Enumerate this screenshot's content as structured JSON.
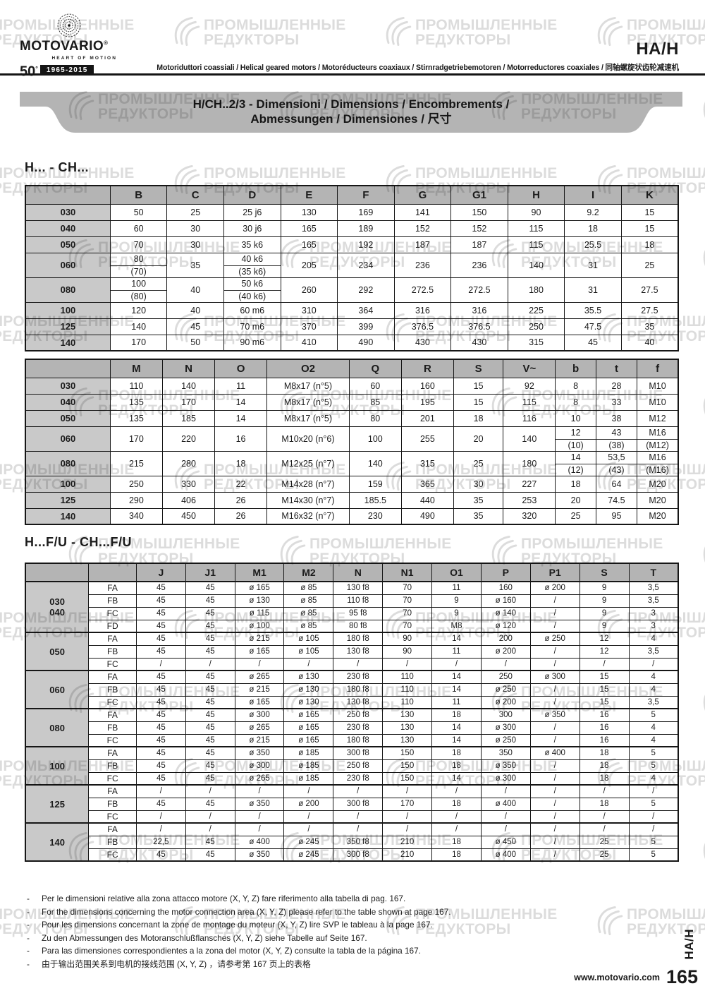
{
  "header": {
    "brand": "MOTOVARIO",
    "reg": "®",
    "tagline": "HEART OF MOTION",
    "anniversary_number": "50",
    "anniversary_degree": "°",
    "anniversary_years": "1965-2015",
    "product_code": "HA/H",
    "subtitle": "Motoriduttori coassiali / Helical geared motors / Motoréducteurs coaxiaux / Stirnradgetriebemotoren / Motorreductores coaxiales / 同轴螺旋状齿轮减速机"
  },
  "banner": {
    "line1": "H/CH..2/3 - Dimensioni / Dimensions / Encombrements /",
    "line2": "Abmessungen / Dimensiones / 尺寸"
  },
  "watermark": {
    "line1": "ПРОМЫШЛЕННЫЕ",
    "line2": "РЕДУКТОРЫ"
  },
  "sections": {
    "first": "H... - CH...",
    "second": "H...F/U - CH...F/U"
  },
  "tables": {
    "h_ch_main": {
      "headers": [
        "",
        "B",
        "C",
        "D",
        "E",
        "F",
        "G",
        "G1",
        "H",
        "I",
        "K"
      ],
      "rows": [
        [
          "030",
          "50",
          "25",
          "25 j6",
          "130",
          "169",
          "141",
          "150",
          "90",
          "9.2",
          "15"
        ],
        [
          "040",
          "60",
          "30",
          "30 j6",
          "165",
          "189",
          "152",
          "152",
          "115",
          "18",
          "15"
        ],
        [
          "050",
          "70",
          "30",
          "35 k6",
          "165",
          "192",
          "187",
          "187",
          "115",
          "25.5",
          "18"
        ],
        [
          "060",
          [
            "80",
            "(70)"
          ],
          "35",
          [
            "40 k6",
            "(35 k6)"
          ],
          "205",
          "234",
          "236",
          "236",
          "140",
          "31",
          "25"
        ],
        [
          "080",
          [
            "100",
            "(80)"
          ],
          "40",
          [
            "50 k6",
            "(40 k6)"
          ],
          "260",
          "292",
          "272.5",
          "272.5",
          "180",
          "31",
          "27.5"
        ],
        [
          "100",
          "120",
          "40",
          "60 m6",
          "310",
          "364",
          "316",
          "316",
          "225",
          "35.5",
          "27.5"
        ],
        [
          "125",
          "140",
          "45",
          "70 m6",
          "370",
          "399",
          "376.5",
          "376.5",
          "250",
          "47.5",
          "35"
        ],
        [
          "140",
          "170",
          "50",
          "90 m6",
          "410",
          "490",
          "430",
          "430",
          "315",
          "45",
          "40"
        ]
      ]
    },
    "h_ch_secondary": {
      "headers": [
        "",
        "M",
        "N",
        "O",
        "O2",
        "Q",
        "R",
        "S",
        "V~",
        "b",
        "t",
        "f"
      ],
      "rows": [
        [
          "030",
          "110",
          "140",
          "11",
          "M8x17 (n°5)",
          "60",
          "160",
          "15",
          "92",
          "8",
          "28",
          "M10"
        ],
        [
          "040",
          "135",
          "170",
          "14",
          "M8x17 (n°5)",
          "85",
          "195",
          "15",
          "115",
          "8",
          "33",
          "M10"
        ],
        [
          "050",
          "135",
          "185",
          "14",
          "M8x17 (n°5)",
          "80",
          "201",
          "18",
          "116",
          "10",
          "38",
          "M12"
        ],
        [
          "060",
          "170",
          "220",
          "16",
          "M10x20 (n°6)",
          "100",
          "255",
          "20",
          "140",
          [
            "12",
            "(10)"
          ],
          [
            "43",
            "(38)"
          ],
          [
            "M16",
            "(M12)"
          ]
        ],
        [
          "080",
          "215",
          "280",
          "18",
          "M12x25 (n°7)",
          "140",
          "315",
          "25",
          "180",
          [
            "14",
            "(12)"
          ],
          [
            "53,5",
            "(43)"
          ],
          [
            "M16",
            "(M16)"
          ]
        ],
        [
          "100",
          "250",
          "330",
          "22",
          "M14x28 (n°7)",
          "159",
          "365",
          "30",
          "227",
          "18",
          "64",
          "M20"
        ],
        [
          "125",
          "290",
          "406",
          "26",
          "M14x30 (n°7)",
          "185.5",
          "440",
          "35",
          "253",
          "20",
          "74.5",
          "M20"
        ],
        [
          "140",
          "340",
          "450",
          "26",
          "M16x32 (n°7)",
          "230",
          "490",
          "35",
          "320",
          "25",
          "95",
          "M20"
        ]
      ]
    },
    "h_fu": {
      "headers": [
        "",
        "",
        "J",
        "J1",
        "M1",
        "M2",
        "N",
        "N1",
        "O1",
        "P",
        "P1",
        "S",
        "T"
      ],
      "groups": [
        {
          "label": [
            "030",
            "040"
          ],
          "rows": [
            [
              "FA",
              "45",
              "45",
              "ø 165",
              "ø 85",
              "130 f8",
              "70",
              "11",
              "160",
              "ø 200",
              "9",
              "3,5"
            ],
            [
              "FB",
              "45",
              "45",
              "ø 130",
              "ø 85",
              "110 f8",
              "70",
              "9",
              "ø 160",
              "/",
              "9",
              "3,5"
            ],
            [
              "FC",
              "45",
              "45",
              "ø 115",
              "ø 85",
              "95 f8",
              "70",
              "9",
              "ø 140",
              "/",
              "9",
              "3"
            ],
            [
              "FD",
              "45",
              "45",
              "ø 100",
              "ø 85",
              "80 f8",
              "70",
              "M8",
              "ø 120",
              "/",
              "9",
              "3"
            ]
          ]
        },
        {
          "label": [
            "050"
          ],
          "rows": [
            [
              "FA",
              "45",
              "45",
              "ø 215",
              "ø 105",
              "180 f8",
              "90",
              "14",
              "200",
              "ø 250",
              "12",
              "4"
            ],
            [
              "FB",
              "45",
              "45",
              "ø 165",
              "ø 105",
              "130 f8",
              "90",
              "11",
              "ø 200",
              "/",
              "12",
              "3,5"
            ],
            [
              "FC",
              "/",
              "/",
              "/",
              "/",
              "/",
              "/",
              "/",
              "/",
              "/",
              "/",
              "/"
            ]
          ]
        },
        {
          "label": [
            "060"
          ],
          "rows": [
            [
              "FA",
              "45",
              "45",
              "ø 265",
              "ø 130",
              "230 f8",
              "110",
              "14",
              "250",
              "ø 300",
              "15",
              "4"
            ],
            [
              "FB",
              "45",
              "45",
              "ø 215",
              "ø 130",
              "180 f8",
              "110",
              "14",
              "ø 250",
              "/",
              "15",
              "4"
            ],
            [
              "FC",
              "45",
              "45",
              "ø 165",
              "ø 130",
              "130 f8",
              "110",
              "11",
              "ø 200",
              "/",
              "15",
              "3,5"
            ]
          ]
        },
        {
          "label": [
            "080"
          ],
          "rows": [
            [
              "FA",
              "45",
              "45",
              "ø 300",
              "ø 165",
              "250 f8",
              "130",
              "18",
              "300",
              "ø 350",
              "16",
              "5"
            ],
            [
              "FB",
              "45",
              "45",
              "ø 265",
              "ø 165",
              "230 f8",
              "130",
              "14",
              "ø 300",
              "/",
              "16",
              "4"
            ],
            [
              "FC",
              "45",
              "45",
              "ø 215",
              "ø 165",
              "180 f8",
              "130",
              "14",
              "ø 250",
              "/",
              "16",
              "4"
            ]
          ]
        },
        {
          "label": [
            "100"
          ],
          "rows": [
            [
              "FA",
              "45",
              "45",
              "ø 350",
              "ø 185",
              "300 f8",
              "150",
              "18",
              "350",
              "ø 400",
              "18",
              "5"
            ],
            [
              "FB",
              "45",
              "45",
              "ø 300",
              "ø 185",
              "250 f8",
              "150",
              "18",
              "ø 350",
              "/",
              "18",
              "5"
            ],
            [
              "FC",
              "45",
              "45",
              "ø 265",
              "ø 185",
              "230 f8",
              "150",
              "14",
              "ø 300",
              "/",
              "18",
              "4"
            ]
          ]
        },
        {
          "label": [
            "125"
          ],
          "rows": [
            [
              "FA",
              "/",
              "/",
              "/",
              "/",
              "/",
              "/",
              "/",
              "/",
              "/",
              "/",
              "/"
            ],
            [
              "FB",
              "45",
              "45",
              "ø 350",
              "ø 200",
              "300 f8",
              "170",
              "18",
              "ø 400",
              "/",
              "18",
              "5"
            ],
            [
              "FC",
              "/",
              "/",
              "/",
              "/",
              "/",
              "/",
              "/",
              "/",
              "/",
              "/",
              "/"
            ]
          ]
        },
        {
          "label": [
            "140"
          ],
          "rows": [
            [
              "FA",
              "/",
              "/",
              "/",
              "/",
              "/",
              "/",
              "/",
              "/",
              "/",
              "/",
              "/"
            ],
            [
              "FB",
              "22,5",
              "45",
              "ø 400",
              "ø 245",
              "350 f8",
              "210",
              "18",
              "ø 450",
              "/",
              "25",
              "5"
            ],
            [
              "FC",
              "45",
              "45",
              "ø 350",
              "ø 245",
              "300 f8",
              "210",
              "18",
              "ø 400",
              "/",
              "25",
              "5"
            ]
          ]
        }
      ]
    }
  },
  "footnotes": [
    "Per le dimensioni relative alla zona attacco motore (X, Y, Z) fare riferimento alla tabella di pag. 167.",
    "For the dimensions concerning the motor connection area (X, Y, Z) please refer to the table shown at page 167.",
    "Pour les dimensions concernant la zone de montage du  moteur (X, Y, Z) lire SVP le tableau à la page 167.",
    "Zu den Abmessungen des Motoranschlußflansches  (X, Y, Z) siehe Tabelle auf Seite 167.",
    "Para las dimensiones correspondientes a la zona del motor (X, Y, Z) consulte la tabla de la página 167.",
    "由于输出范围关系到电机的接线范围 (X, Y, Z) ，请参考第 167 页上的表格"
  ],
  "footer": {
    "website": "www.motovario.com",
    "page_number": "165",
    "side_code": "HA/H"
  },
  "colors": {
    "header_fill": "#b4b4b4",
    "label_fill": "#c9c9c9",
    "banner_fill": "#b4b4b4",
    "border": "#161616",
    "watermark": "#dcdcdc",
    "badge_bg": "#151515"
  }
}
